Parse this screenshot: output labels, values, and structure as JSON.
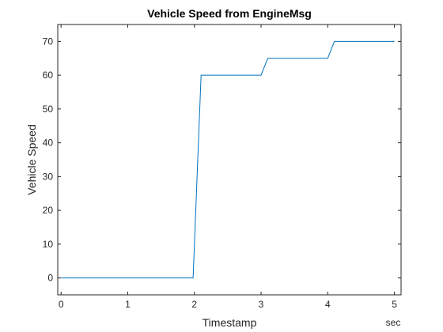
{
  "chart_data": {
    "type": "line",
    "title": "Vehicle Speed from EngineMsg",
    "xlabel": "Timestamp",
    "ylabel": "Vehicle Speed",
    "x_unit": "sec",
    "xlim": [
      -0.05,
      5.1
    ],
    "ylim": [
      -5,
      75
    ],
    "xticks": [
      0,
      1,
      2,
      3,
      4,
      5
    ],
    "yticks": [
      0,
      10,
      20,
      30,
      40,
      50,
      60,
      70
    ],
    "grid": false,
    "line_color": "#0072BD",
    "series": [
      {
        "x": [
          0,
          1.98,
          2.1,
          3.0,
          3.1,
          4.0,
          4.1,
          5.0
        ],
        "y": [
          0,
          0,
          60,
          60,
          65,
          65,
          70,
          70
        ]
      }
    ]
  }
}
